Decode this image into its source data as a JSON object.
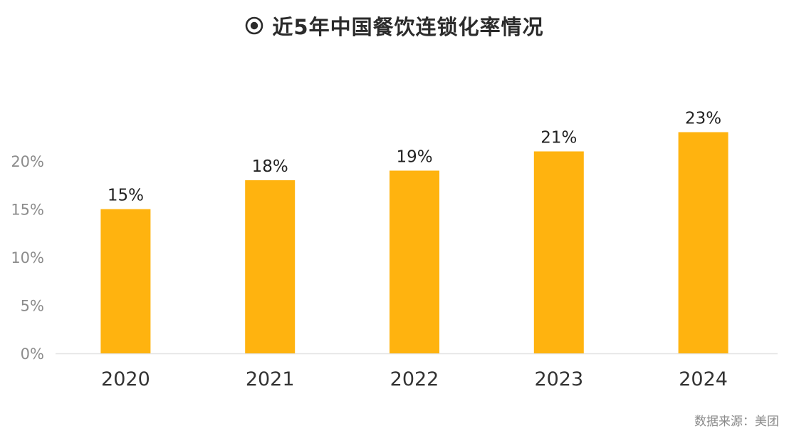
{
  "header": {
    "title": "近5年中国餐饮连锁化率情况",
    "title_icon": "radio-target-icon"
  },
  "source_note": "数据来源：美团",
  "colors": {
    "bar": "#FFB30F",
    "axis_text": "#8c8c8c",
    "label_text": "#222222",
    "grid": "#e3e3e3"
  },
  "chart_data": {
    "type": "bar",
    "title": "近5年中国餐饮连锁化率情况",
    "categories": [
      "2020",
      "2021",
      "2022",
      "2023",
      "2024"
    ],
    "values": [
      15,
      18,
      19,
      21,
      23
    ],
    "data_labels": [
      "15%",
      "18%",
      "19%",
      "21%",
      "23%"
    ],
    "y_ticks": [
      0,
      5,
      10,
      15,
      20
    ],
    "y_tick_labels": [
      "0%",
      "5%",
      "10%",
      "15%",
      "20%"
    ],
    "ylim": [
      0,
      25
    ],
    "unit": "%",
    "xlabel": "",
    "ylabel": "",
    "grid": false,
    "legend": "none"
  }
}
